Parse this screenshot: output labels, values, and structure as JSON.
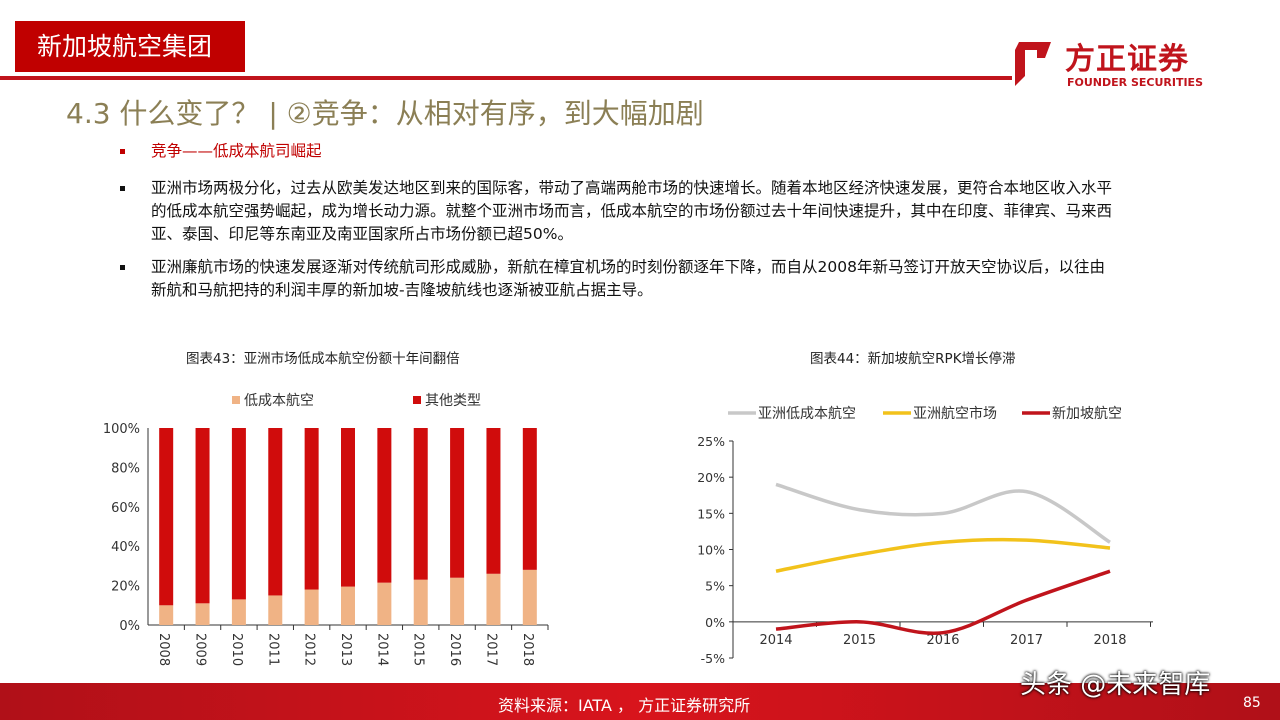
{
  "header": {
    "section": "新加坡航空集团",
    "logo_cn": "方正证券",
    "logo_en": "FOUNDER SECURITIES",
    "title": "4.3 什么变了？ | ②竞争：从相对有序，到大幅加剧"
  },
  "bullets": [
    "竞争——低成本航司崛起",
    "亚洲市场两极分化，过去从欧美发达地区到来的国际客，带动了高端两舱市场的快速增长。随着本地区经济快速发展，更符合本地区收入水平的低成本航空强势崛起，成为增长动力源。就整个亚洲市场而言，低成本航空的市场份额过去十年间快速提升，其中在印度、菲律宾、马来西亚、泰国、印尼等东南亚及南亚国家所占市场份额已超50%。",
    "亚洲廉航市场的快速发展逐渐对传统航司形成威胁，新航在樟宜机场的时刻份额逐年下降，而自从2008年新马签订开放天空协议后，以往由新航和马航把持的利润丰厚的新加坡-吉隆坡航线也逐渐被亚航占据主导。"
  ],
  "chart_data": [
    {
      "type": "bar",
      "stacked": true,
      "title": "图表43：亚洲市场低成本航空份额十年间翻倍",
      "categories": [
        "2008",
        "2009",
        "2010",
        "2011",
        "2012",
        "2013",
        "2014",
        "2015",
        "2016",
        "2017",
        "2018"
      ],
      "series": [
        {
          "name": "低成本航空",
          "color": "#f0b385",
          "values": [
            10,
            11,
            13,
            15,
            18,
            19.5,
            21.5,
            23,
            24,
            26,
            28
          ]
        },
        {
          "name": "其他类型",
          "color": "#d00c0c",
          "values": [
            90,
            89,
            87,
            85,
            82,
            80.5,
            78.5,
            77,
            76,
            74,
            72
          ]
        }
      ],
      "yticks": [
        "0%",
        "20%",
        "40%",
        "60%",
        "80%",
        "100%"
      ],
      "ylim": [
        0,
        100
      ],
      "legend": "top"
    },
    {
      "type": "line",
      "title": "图表44：新加坡航空RPK增长停滞",
      "categories": [
        "2014",
        "2015",
        "2016",
        "2017",
        "2018"
      ],
      "series": [
        {
          "name": "亚洲低成本航空",
          "color": "#c8c8c8",
          "values": [
            19,
            15.5,
            15,
            18,
            11
          ]
        },
        {
          "name": "亚洲航空市场",
          "color": "#f2c21b",
          "values": [
            7,
            9.3,
            11,
            11.3,
            10.2
          ]
        },
        {
          "name": "新加坡航空",
          "color": "#c0141c",
          "values": [
            -1,
            0,
            -1.5,
            3,
            7
          ]
        }
      ],
      "yticks": [
        "-5%",
        "0%",
        "5%",
        "10%",
        "15%",
        "20%",
        "25%"
      ],
      "ylim": [
        -5,
        25
      ],
      "legend": "top"
    }
  ],
  "footer": {
    "source": "资料来源：IATA ， 方正证券研究所",
    "page": "85",
    "watermark": "头条 @未来智库"
  }
}
